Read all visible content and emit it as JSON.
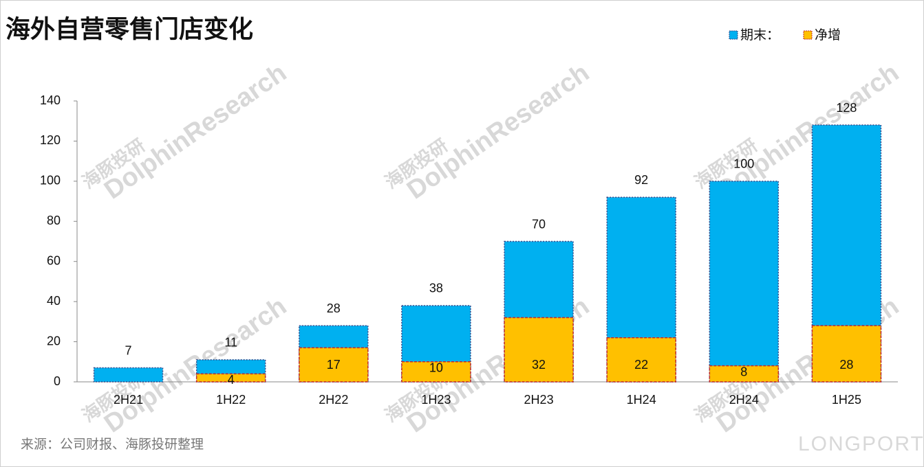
{
  "chart_data": {
    "type": "overlap_bar",
    "title": "海外自营零售门店变化",
    "source": "来源：公司财报、海豚投研整理",
    "watermark": {
      "cn": "海豚投研",
      "en": "DolphinResearch",
      "brand": "LONGPORT"
    },
    "categories": [
      "2H21",
      "1H22",
      "2H22",
      "1H23",
      "2H23",
      "1H24",
      "2H24",
      "1H25"
    ],
    "series": [
      {
        "name": "期末：",
        "color": "#00b0f0",
        "border": "#3a4a8a",
        "values": [
          7,
          11,
          28,
          38,
          70,
          92,
          100,
          128
        ]
      },
      {
        "name": "净增",
        "color": "#ffc000",
        "border": "#c0282d",
        "values": [
          null,
          4,
          17,
          10,
          32,
          22,
          8,
          28
        ]
      }
    ],
    "ylim": [
      0,
      140
    ],
    "yticks": [
      0,
      20,
      40,
      60,
      80,
      100,
      120,
      140
    ],
    "grid": false,
    "legend": "top-right"
  }
}
